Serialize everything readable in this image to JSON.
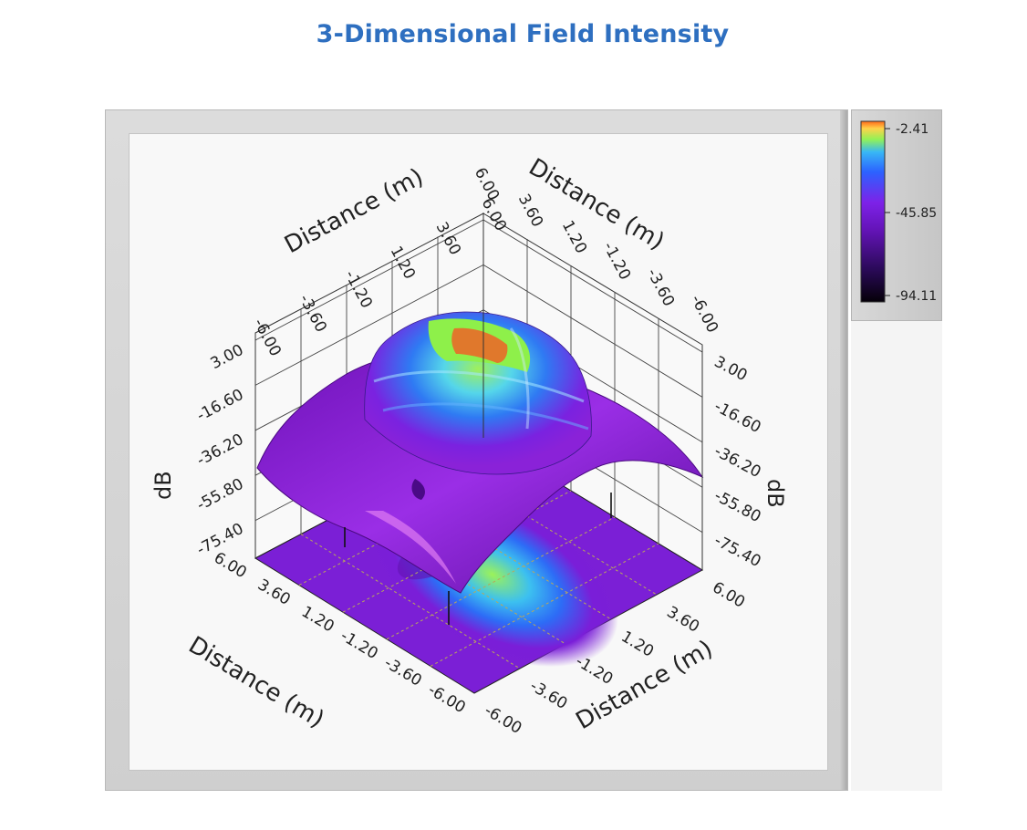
{
  "title": "3-Dimensional Field Intensity",
  "colors": {
    "title": "#2e6fc0",
    "surface_low": "#2a0a55",
    "surface_mid": "#7a14c8",
    "surface_high_blue": "#2c6cf0",
    "surface_peak_green": "#8ef04a",
    "surface_peak_orange": "#e07a2a"
  },
  "chart_data": {
    "type": "surface3d",
    "title": "3-Dimensional Field Intensity",
    "x_axis": {
      "label": "Distance (m)",
      "ticks": [
        "-6.00",
        "-3.60",
        "-1.20",
        "1.20",
        "3.60",
        "6.00"
      ],
      "range": [
        -6,
        6
      ]
    },
    "y_axis": {
      "label": "Distance (m)",
      "ticks": [
        "-6.00",
        "-3.60",
        "-1.20",
        "1.20",
        "3.60",
        "6.00"
      ],
      "range": [
        -6,
        6
      ]
    },
    "z_axis": {
      "label": "dB",
      "ticks": [
        "3.00",
        "-16.60",
        "-36.20",
        "-55.80",
        "-75.40"
      ],
      "range": [
        -75.4,
        3.0
      ]
    },
    "colorbar": {
      "ticks": [
        "-2.41",
        "-45.85",
        "-94.11"
      ],
      "range": [
        -94.11,
        -2.41
      ],
      "position": "right"
    },
    "projection": "xy-plane contour",
    "grid": true
  }
}
